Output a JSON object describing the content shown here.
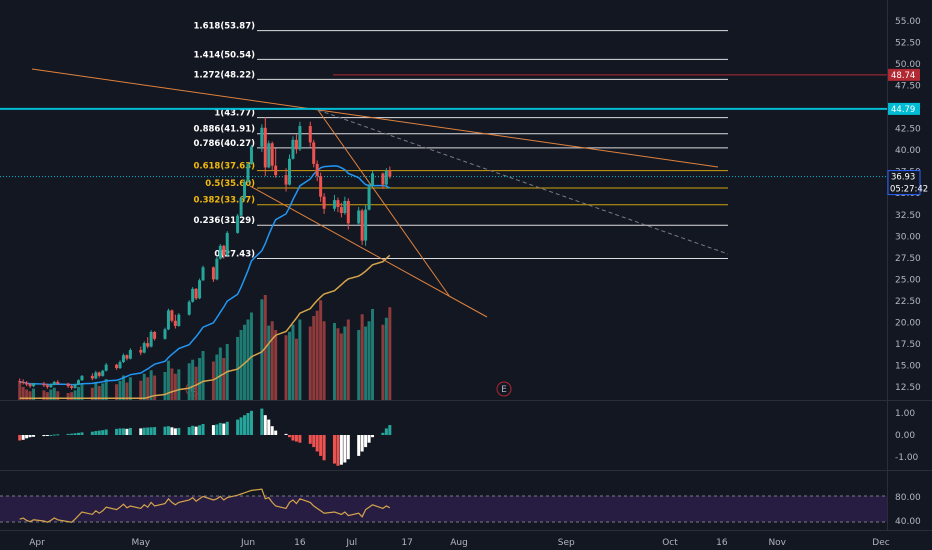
{
  "chart_data": {
    "type": "candlestick",
    "price_axis": {
      "ticks": [
        "55.00",
        "52.50",
        "50.00",
        "47.50",
        "45.00",
        "42.50",
        "40.00",
        "37.50",
        "35.00",
        "32.50",
        "30.00",
        "27.50",
        "25.00",
        "22.50",
        "20.00",
        "17.50",
        "15.00",
        "12.50"
      ],
      "range": [
        11.0,
        56.5
      ]
    },
    "time_axis": {
      "ticks": [
        "Apr",
        "May",
        "Jun",
        "16",
        "Jul",
        "17",
        "Aug",
        "Sep",
        "Oct",
        "16",
        "Nov",
        "Dec"
      ],
      "tick_dates": [
        "2023-04-01",
        "2023-05-01",
        "2023-06-01",
        "2023-06-16",
        "2023-07-01",
        "2023-07-17",
        "2023-08-01",
        "2023-09-01",
        "2023-10-01",
        "2023-10-16",
        "2023-11-01",
        "2023-12-01"
      ]
    },
    "price_tags": {
      "last": {
        "value": 36.93,
        "text": "36.93",
        "color": "#2962ff"
      },
      "countdown": "05:27:42",
      "red_level": {
        "value": 48.74,
        "text": "48.74",
        "color": "#b22833"
      },
      "cyan_level": {
        "value": 44.79,
        "text": "44.79",
        "color": "#00bcd4"
      }
    },
    "fibonacci": [
      {
        "label": "1.618(53.87)",
        "value": 53.87,
        "color": "#ffffff"
      },
      {
        "label": "1.414(50.54)",
        "value": 50.54,
        "color": "#ffffff"
      },
      {
        "label": "1.272(48.22)",
        "value": 48.22,
        "color": "#ffffff"
      },
      {
        "label": "1(43.77)",
        "value": 43.77,
        "color": "#ffffff"
      },
      {
        "label": "0.886(41.91)",
        "value": 41.91,
        "color": "#ffffff"
      },
      {
        "label": "0.786(40.27)",
        "value": 40.27,
        "color": "#ffffff"
      },
      {
        "label": "0.618(37.63)",
        "value": 37.63,
        "color": "#f0b90b"
      },
      {
        "label": "0.5(35.60)",
        "value": 35.6,
        "color": "#f0b90b"
      },
      {
        "label": "0.382(33.67)",
        "value": 33.67,
        "color": "#f0b90b"
      },
      {
        "label": "0.236(31.29)",
        "value": 31.29,
        "color": "#ffffff"
      },
      {
        "label": "0(27.43)",
        "value": 27.43,
        "color": "#ffffff"
      }
    ],
    "candles_ohlc_daily_from_2023-03-27": [
      [
        13.2,
        13.5,
        12.9,
        13.1
      ],
      [
        13.1,
        13.4,
        12.8,
        13.0
      ],
      [
        13.0,
        13.2,
        12.6,
        12.8
      ],
      [
        12.8,
        13.0,
        12.4,
        12.6
      ],
      [
        12.6,
        13.0,
        12.5,
        12.9
      ],
      [
        12.9,
        13.1,
        12.5,
        12.7
      ],
      [
        12.7,
        12.9,
        12.3,
        12.5
      ],
      [
        12.5,
        12.9,
        12.4,
        12.8
      ],
      [
        12.8,
        13.2,
        12.7,
        13.1
      ],
      [
        13.1,
        13.3,
        12.8,
        12.9
      ],
      [
        12.9,
        13.0,
        12.4,
        12.6
      ],
      [
        12.6,
        12.8,
        12.2,
        12.4
      ],
      [
        12.4,
        12.9,
        12.3,
        12.8
      ],
      [
        12.8,
        13.4,
        12.7,
        13.3
      ],
      [
        13.3,
        13.9,
        13.2,
        13.8
      ],
      [
        13.8,
        14.1,
        13.3,
        13.5
      ],
      [
        13.5,
        14.4,
        13.4,
        14.2
      ],
      [
        14.2,
        14.3,
        13.6,
        13.8
      ],
      [
        13.8,
        14.5,
        13.7,
        14.4
      ],
      [
        14.4,
        15.3,
        14.3,
        15.1
      ],
      [
        15.1,
        15.2,
        14.5,
        14.7
      ],
      [
        14.7,
        15.6,
        14.6,
        15.4
      ],
      [
        15.4,
        16.4,
        15.3,
        16.2
      ],
      [
        16.2,
        16.3,
        15.6,
        15.8
      ],
      [
        15.8,
        17.0,
        15.7,
        16.8
      ],
      [
        16.8,
        17.2,
        16.2,
        16.5
      ],
      [
        16.5,
        17.8,
        16.4,
        17.6
      ],
      [
        17.6,
        18.3,
        17.0,
        17.2
      ],
      [
        17.2,
        19.1,
        17.1,
        18.9
      ],
      [
        18.9,
        19.0,
        17.9,
        18.1
      ],
      [
        18.1,
        19.4,
        18.0,
        19.2
      ],
      [
        19.2,
        21.6,
        19.1,
        21.4
      ],
      [
        21.4,
        21.5,
        20.0,
        20.2
      ],
      [
        20.2,
        20.9,
        19.3,
        19.6
      ],
      [
        19.6,
        21.1,
        19.5,
        20.9
      ],
      [
        20.9,
        22.6,
        20.8,
        22.4
      ],
      [
        22.4,
        24.1,
        22.3,
        23.9
      ],
      [
        23.9,
        24.0,
        22.6,
        22.8
      ],
      [
        22.8,
        25.1,
        22.7,
        24.9
      ],
      [
        24.9,
        26.6,
        24.8,
        26.4
      ],
      [
        26.4,
        26.5,
        24.7,
        25.0
      ],
      [
        25.0,
        27.6,
        24.9,
        27.4
      ],
      [
        27.4,
        29.1,
        27.3,
        28.9
      ],
      [
        28.9,
        29.0,
        27.4,
        27.8
      ],
      [
        27.8,
        30.6,
        27.7,
        30.4
      ],
      [
        30.4,
        32.6,
        30.3,
        32.4
      ],
      [
        32.4,
        34.6,
        32.3,
        34.4
      ],
      [
        34.4,
        36.6,
        34.3,
        36.3
      ],
      [
        36.3,
        38.6,
        36.2,
        38.4
      ],
      [
        38.4,
        40.6,
        38.3,
        40.4
      ],
      [
        40.4,
        43.0,
        39.8,
        42.6
      ],
      [
        42.6,
        43.8,
        37.0,
        38.0
      ],
      [
        38.0,
        41.1,
        37.9,
        40.8
      ],
      [
        40.8,
        41.0,
        37.7,
        38.2
      ],
      [
        38.2,
        40.2,
        36.8,
        37.1
      ],
      [
        37.1,
        37.9,
        35.2,
        36.0
      ],
      [
        36.0,
        39.5,
        35.9,
        39.0
      ],
      [
        39.0,
        41.6,
        38.9,
        41.2
      ],
      [
        41.2,
        41.8,
        39.6,
        40.1
      ],
      [
        40.1,
        43.3,
        39.9,
        42.8
      ],
      [
        42.8,
        43.3,
        40.4,
        40.9
      ],
      [
        40.9,
        41.2,
        38.0,
        38.4
      ],
      [
        38.4,
        38.8,
        36.4,
        37.0
      ],
      [
        37.0,
        37.4,
        34.0,
        34.6
      ],
      [
        34.6,
        35.0,
        32.6,
        33.2
      ],
      [
        33.2,
        34.8,
        32.9,
        34.2
      ],
      [
        34.2,
        34.5,
        32.8,
        33.4
      ],
      [
        33.4,
        33.9,
        32.2,
        32.7
      ],
      [
        32.7,
        34.6,
        32.5,
        34.1
      ],
      [
        34.1,
        34.4,
        30.8,
        31.5
      ],
      [
        31.5,
        33.4,
        31.3,
        33.0
      ],
      [
        33.0,
        33.2,
        29.0,
        29.5
      ],
      [
        29.5,
        33.6,
        28.9,
        33.1
      ],
      [
        33.1,
        36.1,
        33.0,
        35.8
      ],
      [
        35.8,
        37.6,
        35.7,
        37.3
      ],
      [
        37.3,
        37.4,
        35.5,
        36.0
      ],
      [
        36.0,
        37.9,
        35.8,
        37.6
      ],
      [
        37.6,
        38.1,
        36.7,
        36.93
      ]
    ],
    "volume": [
      2.0,
      1.5,
      1.2,
      1.0,
      1.3,
      1.1,
      0.9,
      1.2,
      1.4,
      1.0,
      0.8,
      0.9,
      1.1,
      1.5,
      1.8,
      1.4,
      2.0,
      1.6,
      1.9,
      2.4,
      1.8,
      2.2,
      2.8,
      2.0,
      2.6,
      2.2,
      3.0,
      2.6,
      3.4,
      2.8,
      3.2,
      4.5,
      3.6,
      3.0,
      3.5,
      4.2,
      4.6,
      3.8,
      4.8,
      5.6,
      4.4,
      5.2,
      6.0,
      4.8,
      6.4,
      7.2,
      8.0,
      8.6,
      9.2,
      10.0,
      11.5,
      12.0,
      8.5,
      9.0,
      8.0,
      7.4,
      7.8,
      8.6,
      7.0,
      9.2,
      8.4,
      9.6,
      10.2,
      11.4,
      9.0,
      8.8,
      8.2,
      7.6,
      8.4,
      9.2,
      8.0,
      9.8,
      8.4,
      9.0,
      10.4,
      8.6,
      9.4,
      10.6
    ],
    "volume_colors": "up=#26a69a down=#ef5350",
    "ma_fast": {
      "color": "#2196f3",
      "values_from_index": 0
    },
    "ma_slow": {
      "color": "#d4a54b"
    },
    "events": [
      "E",
      "E"
    ],
    "oscillator": {
      "ticks": [
        "1.00",
        "0.00",
        "-1.00"
      ],
      "values": [
        -0.25,
        -0.22,
        -0.15,
        -0.1,
        -0.08,
        -0.05,
        -0.02,
        0.0,
        0.02,
        0.03,
        0.05,
        0.06,
        0.08,
        0.1,
        0.12,
        0.15,
        0.18,
        0.2,
        0.22,
        0.25,
        0.28,
        0.3,
        0.3,
        0.28,
        0.32,
        0.3,
        0.33,
        0.34,
        0.35,
        0.36,
        0.38,
        0.4,
        0.35,
        0.3,
        0.32,
        0.36,
        0.42,
        0.38,
        0.44,
        0.5,
        0.45,
        0.48,
        0.55,
        0.52,
        0.6,
        0.7,
        0.8,
        0.9,
        1.0,
        1.1,
        1.2,
        0.9,
        0.7,
        0.4,
        0.2,
        0.05,
        -0.1,
        -0.25,
        -0.3,
        -0.35,
        -0.4,
        -0.55,
        -0.75,
        -0.95,
        -1.15,
        -1.3,
        -1.4,
        -1.35,
        -1.25,
        -1.1,
        -0.95,
        -0.75,
        -0.55,
        -0.35,
        -0.1,
        0.1,
        0.3,
        0.45
      ]
    },
    "rsi": {
      "ticks": [
        "80.00",
        "40.00"
      ],
      "values": [
        38,
        40,
        36,
        34,
        37,
        35,
        33,
        36,
        40,
        37,
        34,
        33,
        38,
        44,
        50,
        46,
        52,
        48,
        52,
        58,
        54,
        58,
        63,
        57,
        60,
        56,
        62,
        58,
        66,
        60,
        64,
        72,
        66,
        62,
        66,
        70,
        74,
        68,
        72,
        76,
        70,
        72,
        76,
        70,
        74,
        78,
        80,
        82,
        84,
        86,
        88,
        72,
        74,
        66,
        60,
        56,
        66,
        70,
        64,
        72,
        66,
        60,
        56,
        52,
        48,
        50,
        48,
        46,
        50,
        44,
        48,
        42,
        54,
        58,
        62,
        56,
        60,
        57
      ]
    }
  }
}
